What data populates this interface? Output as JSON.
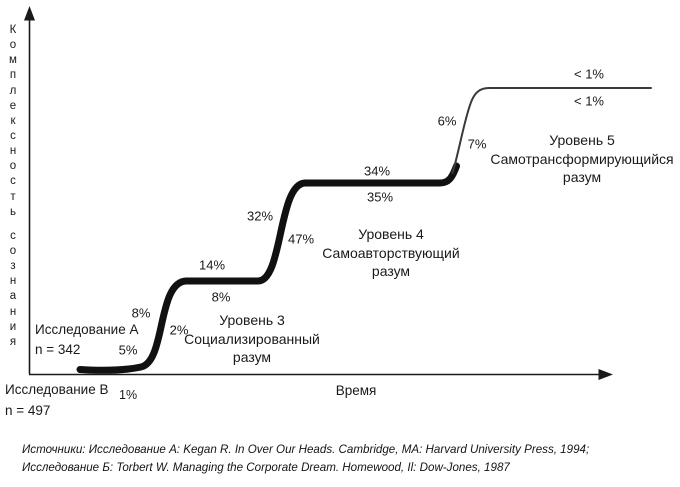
{
  "figure": {
    "y_axis_label": "Комплексность сознания",
    "x_axis_label": "Время"
  },
  "studies": {
    "a_label": "Исследование А",
    "a_n": "n = 342",
    "b_label": "Исследование B",
    "b_n": "n = 497",
    "b_pct": "1%"
  },
  "chart_data": {
    "type": "line",
    "subtype": "staircase-s-curve, single cumulative development curve rising through three plateaus",
    "title": "",
    "xlabel": "Время",
    "ylabel": "Комплексность сознания",
    "x_ticks": [],
    "y_ticks": [],
    "grid": false,
    "legend_position": "none",
    "samples": [
      {
        "label": "Исследование А",
        "n": 342
      },
      {
        "label": "Исследование B",
        "n": 497
      }
    ],
    "levels": [
      {
        "lines": [
          "Уровень 3",
          "Социализированный",
          "разум"
        ],
        "pct_above_plateau": "14%",
        "pct_below_plateau": "8%"
      },
      {
        "lines": [
          "Уровень 4",
          "Самоавторствующий",
          "разум"
        ],
        "pct_above_plateau": "34%",
        "pct_below_plateau": "35%"
      },
      {
        "lines": [
          "Уровень 5",
          "Самотрансформирующийся",
          "разум"
        ],
        "pct_above_plateau": "< 1%",
        "pct_below_plateau": "< 1%"
      }
    ],
    "annotations": [
      {
        "text": "5%",
        "role": "below-curve-start"
      },
      {
        "text": "8%",
        "role": "left-of-rise-1"
      },
      {
        "text": "2%",
        "role": "right-of-rise-1"
      },
      {
        "text": "14%",
        "role": "above-plateau-1"
      },
      {
        "text": "8%",
        "role": "below-plateau-1"
      },
      {
        "text": "32%",
        "role": "left-of-rise-2"
      },
      {
        "text": "47%",
        "role": "right-of-rise-2"
      },
      {
        "text": "34%",
        "role": "above-plateau-2"
      },
      {
        "text": "35%",
        "role": "below-plateau-2"
      },
      {
        "text": "6%",
        "role": "left-of-rise-3"
      },
      {
        "text": "7%",
        "role": "right-of-rise-3"
      },
      {
        "text": "< 1%",
        "role": "above-plateau-3"
      },
      {
        "text": "< 1%",
        "role": "below-plateau-3"
      },
      {
        "text": "1%",
        "role": "below-x-axis-after-study-b"
      }
    ],
    "line_color": "#111111",
    "thin_line_color": "#3a3a3a"
  },
  "sources": {
    "line1": "Источники: Исследование А: Kegan R. In Over Our Heads. Cambridge, MA: Harvard University Press, 1994;",
    "line2": "Исследование Б: Torbert W. Managing the Corporate Dream. Homewood, Il: Dow-Jones, 1987"
  }
}
